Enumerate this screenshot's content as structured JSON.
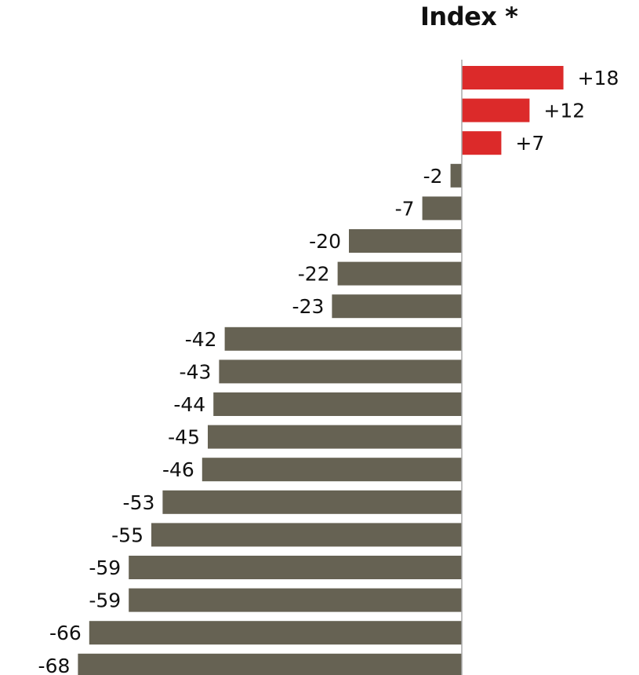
{
  "chart_data": {
    "type": "bar",
    "orientation": "horizontal",
    "title": "Index *",
    "series": [
      {
        "values": [
          18,
          12,
          7,
          -2,
          -7,
          -20,
          -22,
          -23,
          -42,
          -43,
          -44,
          -45,
          -46,
          -53,
          -55,
          -59,
          -59,
          -66,
          -68
        ],
        "labels": [
          "+18",
          "+12",
          "+7",
          "-2",
          "-7",
          "-20",
          "-22",
          "-23",
          "-42",
          "-43",
          "-44",
          "-45",
          "-46",
          "-53",
          "-55",
          "-59",
          "-59",
          "-66",
          "-68"
        ]
      }
    ],
    "colors": {
      "positive": "#dc2a2a",
      "negative": "#666253",
      "axis": "#a8a8a8",
      "text": "#111111"
    },
    "grid": false,
    "legend": "none"
  }
}
